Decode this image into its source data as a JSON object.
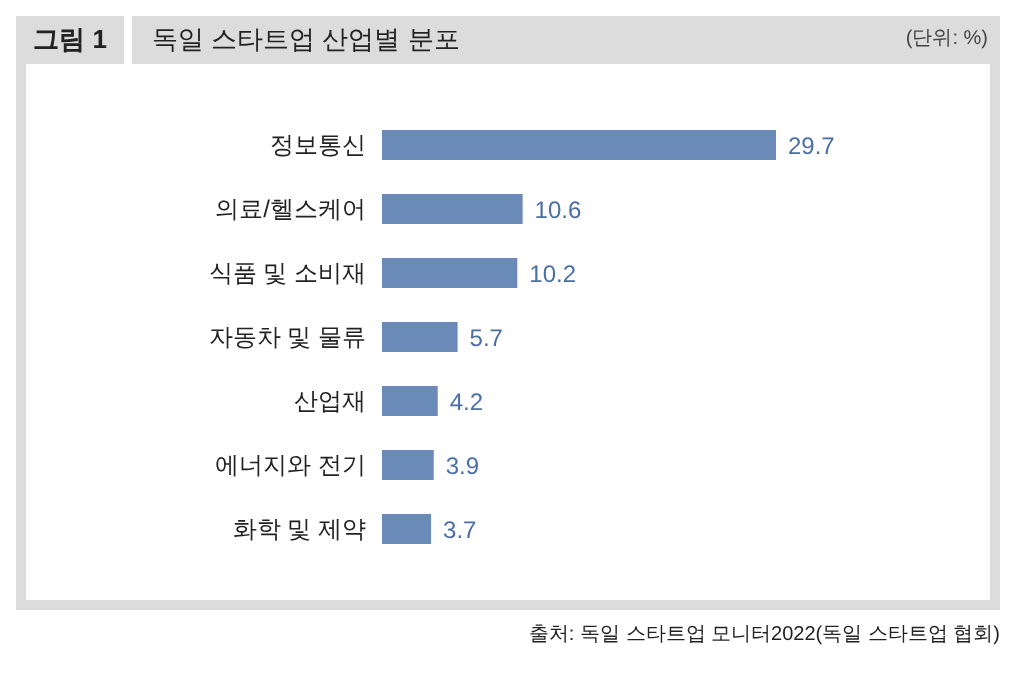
{
  "chart_data": {
    "type": "bar",
    "orientation": "horizontal",
    "title": "독일 스타트업 산업별 분포",
    "annotations": [
      "그림 1",
      "(단위: %)",
      "출처: 독일 스타트업 모니터2022(독일 스타트업 협회)"
    ],
    "categories": [
      "정보통신",
      "의료/헬스케어",
      "식품 및 소비재",
      "자동차 및 물류",
      "산업재",
      "에너지와 전기",
      "화학 및 제약"
    ],
    "values": [
      29.7,
      10.6,
      10.2,
      5.7,
      4.2,
      3.9,
      3.7
    ],
    "color": "#6a8ab8",
    "data_labels": true,
    "grid": false,
    "legend": false
  }
}
